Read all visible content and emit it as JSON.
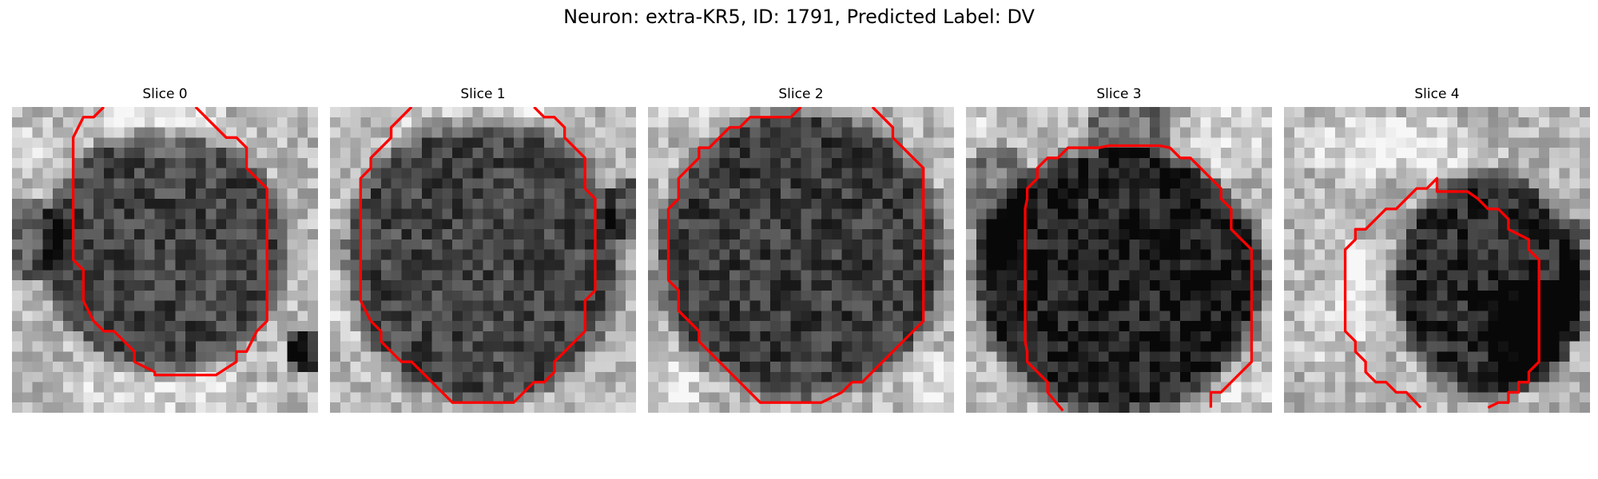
{
  "figure": {
    "title": "Neuron: extra-KR5, ID: 1791, Predicted Label: DV"
  },
  "grid_size": 30,
  "contour_color": "#ff0000",
  "panels": [
    {
      "title": "Slice 0",
      "seed": 11,
      "blobs": [
        {
          "cx": 15,
          "cy": 14,
          "rx": 11,
          "ry": 11,
          "depth": 0.45
        },
        {
          "cx": 0,
          "cy": 13,
          "rx": 5,
          "ry": 4,
          "depth": 0.35
        },
        {
          "cx": 29,
          "cy": 24,
          "rx": 2,
          "ry": 2,
          "depth": 0.6
        }
      ],
      "bright": [
        {
          "cx": 15,
          "cy": 2,
          "rx": 7,
          "ry": 3,
          "amount": 0.2
        },
        {
          "cx": 15,
          "cy": 28,
          "rx": 10,
          "ry": 2,
          "amount": 0.15
        },
        {
          "cx": 2,
          "cy": 4,
          "rx": 3,
          "ry": 3,
          "amount": 0.1
        }
      ],
      "contour": [
        [
          9,
          0
        ],
        [
          8,
          1
        ],
        [
          7,
          1
        ],
        [
          6,
          3
        ],
        [
          6,
          15
        ],
        [
          7,
          16
        ],
        [
          7,
          19
        ],
        [
          8,
          21
        ],
        [
          9,
          22
        ],
        [
          10,
          22
        ],
        [
          12,
          24
        ],
        [
          12,
          25
        ],
        [
          14,
          26
        ],
        [
          14,
          26.3
        ],
        [
          20,
          26.3
        ],
        [
          22,
          25
        ],
        [
          22,
          24
        ],
        [
          23,
          24
        ],
        [
          24,
          22
        ],
        [
          25,
          21
        ],
        [
          25,
          8
        ],
        [
          24,
          7
        ],
        [
          23,
          6
        ],
        [
          23,
          4
        ],
        [
          22,
          3
        ],
        [
          21,
          3
        ],
        [
          20,
          2
        ],
        [
          19,
          1
        ],
        [
          18,
          0
        ]
      ]
    },
    {
      "title": "Slice 1",
      "seed": 23,
      "blobs": [
        {
          "cx": 15,
          "cy": 15,
          "rx": 12.5,
          "ry": 13,
          "depth": 0.45
        },
        {
          "cx": 29,
          "cy": 10,
          "rx": 2,
          "ry": 3,
          "depth": 0.4
        }
      ],
      "bright": [
        {
          "cx": 15,
          "cy": 1,
          "rx": 8,
          "ry": 2,
          "amount": 0.15
        },
        {
          "cx": 1,
          "cy": 20,
          "rx": 2,
          "ry": 4,
          "amount": 0.1
        }
      ],
      "contour": [
        [
          8,
          0
        ],
        [
          7,
          1
        ],
        [
          6,
          2
        ],
        [
          6,
          3
        ],
        [
          5,
          4
        ],
        [
          4,
          5
        ],
        [
          4,
          6
        ],
        [
          3,
          7
        ],
        [
          3,
          15
        ],
        [
          3,
          19
        ],
        [
          4,
          21
        ],
        [
          5,
          22
        ],
        [
          5,
          23
        ],
        [
          6,
          24
        ],
        [
          7,
          25
        ],
        [
          8,
          25
        ],
        [
          9,
          26
        ],
        [
          10,
          27
        ],
        [
          11,
          28
        ],
        [
          12,
          29
        ],
        [
          13,
          29
        ],
        [
          18,
          29
        ],
        [
          19,
          28
        ],
        [
          20,
          27
        ],
        [
          21,
          27
        ],
        [
          22,
          26
        ],
        [
          22,
          25
        ],
        [
          23,
          24
        ],
        [
          24,
          23
        ],
        [
          25,
          22
        ],
        [
          25,
          19
        ],
        [
          26,
          18
        ],
        [
          26,
          9
        ],
        [
          25,
          8
        ],
        [
          25,
          5
        ],
        [
          24,
          4
        ],
        [
          23,
          3
        ],
        [
          23,
          2
        ],
        [
          22,
          1
        ],
        [
          21,
          1
        ],
        [
          20,
          0
        ]
      ]
    },
    {
      "title": "Slice 2",
      "seed": 37,
      "blobs": [
        {
          "cx": 15,
          "cy": 14.5,
          "rx": 13,
          "ry": 13,
          "depth": 0.48
        }
      ],
      "bright": [
        {
          "cx": 2,
          "cy": 27,
          "rx": 4,
          "ry": 3,
          "amount": 0.15
        },
        {
          "cx": 28,
          "cy": 27,
          "rx": 3,
          "ry": 3,
          "amount": 0.15
        },
        {
          "cx": 4,
          "cy": 1,
          "rx": 3,
          "ry": 2,
          "amount": 0.1
        }
      ],
      "contour": [
        [
          15,
          0
        ],
        [
          14,
          1
        ],
        [
          10,
          1
        ],
        [
          9,
          2
        ],
        [
          8,
          2
        ],
        [
          7,
          3
        ],
        [
          6,
          4
        ],
        [
          5,
          4
        ],
        [
          5,
          5
        ],
        [
          4,
          6
        ],
        [
          3,
          7
        ],
        [
          3,
          9
        ],
        [
          2,
          10
        ],
        [
          2,
          17
        ],
        [
          3,
          18
        ],
        [
          3,
          20
        ],
        [
          4,
          21
        ],
        [
          5,
          22
        ],
        [
          5,
          23
        ],
        [
          6,
          24
        ],
        [
          7,
          25
        ],
        [
          8,
          26
        ],
        [
          9,
          27
        ],
        [
          10,
          28
        ],
        [
          11,
          29
        ],
        [
          17,
          29
        ],
        [
          19,
          28
        ],
        [
          20,
          27
        ],
        [
          21,
          27
        ],
        [
          22,
          26
        ],
        [
          23,
          25
        ],
        [
          24,
          24
        ],
        [
          25,
          23
        ],
        [
          26,
          22
        ],
        [
          27,
          21
        ],
        [
          27,
          6
        ],
        [
          26,
          5
        ],
        [
          25,
          4
        ],
        [
          24,
          3
        ],
        [
          24,
          2
        ],
        [
          23,
          1
        ],
        [
          22,
          0
        ]
      ]
    },
    {
      "title": "Slice 3",
      "seed": 51,
      "blobs": [
        {
          "cx": 15,
          "cy": 17,
          "rx": 13,
          "ry": 12,
          "depth": 0.6
        },
        {
          "cx": 3,
          "cy": 9,
          "rx": 3,
          "ry": 5,
          "depth": 0.25
        },
        {
          "cx": 16,
          "cy": 2,
          "rx": 4,
          "ry": 3,
          "depth": 0.3
        }
      ],
      "bright": [
        {
          "cx": 26,
          "cy": 3,
          "rx": 4,
          "ry": 4,
          "amount": 0.12
        },
        {
          "cx": 27,
          "cy": 28,
          "rx": 4,
          "ry": 3,
          "amount": 0.12
        },
        {
          "cx": 1,
          "cy": 2,
          "rx": 3,
          "ry": 3,
          "amount": 0.1
        }
      ],
      "contour": [
        [
          9.5,
          29.8
        ],
        [
          8,
          28
        ],
        [
          8,
          27
        ],
        [
          7,
          26
        ],
        [
          6,
          25
        ],
        [
          6,
          24
        ],
        [
          5.8,
          23
        ],
        [
          5.8,
          10
        ],
        [
          6,
          9
        ],
        [
          6,
          8
        ],
        [
          7,
          7
        ],
        [
          7,
          6
        ],
        [
          8,
          5
        ],
        [
          9,
          5
        ],
        [
          10,
          4
        ],
        [
          13,
          4
        ],
        [
          14,
          3.8
        ],
        [
          19,
          3.8
        ],
        [
          20,
          4
        ],
        [
          21,
          5
        ],
        [
          22,
          5
        ],
        [
          23,
          6
        ],
        [
          24,
          7
        ],
        [
          25,
          8
        ],
        [
          25,
          9
        ],
        [
          26,
          10
        ],
        [
          26,
          12
        ],
        [
          27,
          13
        ],
        [
          28,
          14
        ],
        [
          28,
          25
        ],
        [
          27,
          26
        ],
        [
          26,
          27
        ],
        [
          25,
          28
        ],
        [
          24,
          28
        ],
        [
          24,
          29.5
        ]
      ]
    },
    {
      "title": "Slice 4",
      "seed": 67,
      "blobs": [
        {
          "cx": 20,
          "cy": 17.5,
          "rx": 8.5,
          "ry": 10,
          "depth": 0.55
        },
        {
          "cx": 24,
          "cy": 22,
          "rx": 4,
          "ry": 5,
          "depth": 0.25
        },
        {
          "cx": 29,
          "cy": 17,
          "rx": 2,
          "ry": 6,
          "depth": 0.3
        }
      ],
      "bright": [
        {
          "cx": 7,
          "cy": 18,
          "rx": 2,
          "ry": 5,
          "amount": 0.25
        },
        {
          "cx": 10,
          "cy": 4,
          "rx": 10,
          "ry": 3,
          "amount": 0.18
        },
        {
          "cx": 4,
          "cy": 22,
          "rx": 3,
          "ry": 4,
          "amount": 0.1
        }
      ],
      "contour": [
        [
          13.4,
          29.5
        ],
        [
          12,
          28
        ],
        [
          11,
          28
        ],
        [
          10,
          27
        ],
        [
          9,
          27
        ],
        [
          8,
          26
        ],
        [
          8,
          25
        ],
        [
          7,
          24
        ],
        [
          7,
          23
        ],
        [
          6,
          22
        ],
        [
          6,
          14
        ],
        [
          7,
          13
        ],
        [
          7,
          12
        ],
        [
          8,
          12
        ],
        [
          9,
          11
        ],
        [
          10,
          10
        ],
        [
          11,
          10
        ],
        [
          12,
          9
        ],
        [
          12,
          9
        ],
        [
          13,
          8
        ],
        [
          14,
          8
        ],
        [
          15,
          7
        ],
        [
          15,
          8.3
        ],
        [
          18,
          8.3
        ],
        [
          19,
          9
        ],
        [
          20,
          10
        ],
        [
          21,
          10
        ],
        [
          22,
          11
        ],
        [
          22,
          12
        ],
        [
          24,
          13
        ],
        [
          24,
          14
        ],
        [
          25,
          15
        ],
        [
          25,
          25
        ],
        [
          24,
          26
        ],
        [
          24,
          27
        ],
        [
          23,
          27
        ],
        [
          23,
          28
        ],
        [
          22,
          28
        ],
        [
          22,
          29
        ],
        [
          21,
          29
        ],
        [
          20,
          29.5
        ]
      ]
    }
  ]
}
